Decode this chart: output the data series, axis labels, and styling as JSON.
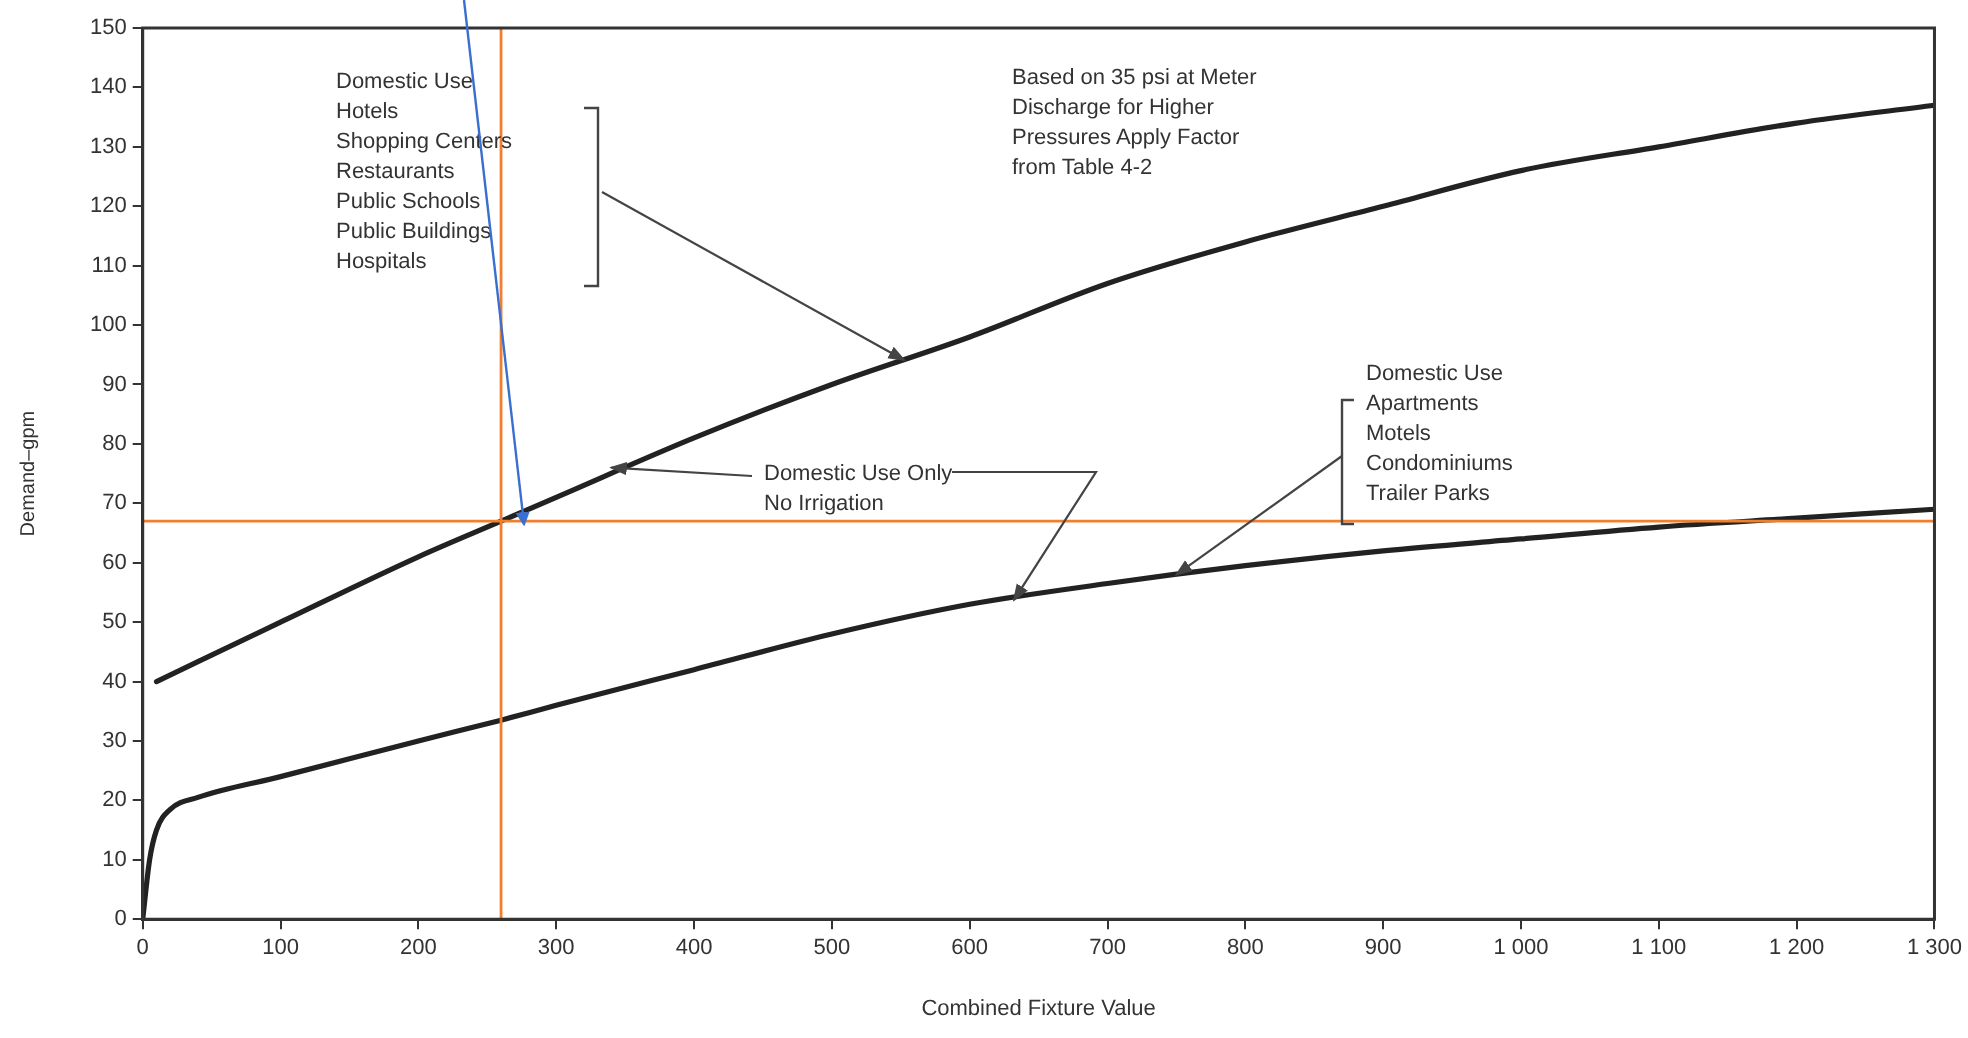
{
  "chart_data": {
    "type": "line",
    "xlabel": "Combined Fixture Value",
    "ylabel": "Demand–gpm",
    "xlim": [
      0,
      1300
    ],
    "ylim": [
      0,
      150
    ],
    "xticks": [
      0,
      100,
      200,
      300,
      400,
      500,
      600,
      700,
      800,
      900,
      {
        "value": 1000,
        "label": "1 000"
      },
      {
        "value": 1100,
        "label": "1 100"
      },
      {
        "value": 1200,
        "label": "1 200"
      },
      {
        "value": 1300,
        "label": "1 300"
      }
    ],
    "yticks": [
      0,
      10,
      20,
      30,
      40,
      50,
      60,
      70,
      80,
      90,
      100,
      110,
      120,
      130,
      140,
      150
    ],
    "marker": "none",
    "series": [
      {
        "color": "#222222",
        "x": [
          10,
          100,
          200,
          260,
          300,
          400,
          500,
          600,
          700,
          800,
          900,
          1000,
          1100,
          1200,
          1300
        ],
        "values": [
          40,
          50,
          61,
          67,
          71,
          81,
          90,
          98,
          107,
          114,
          120,
          126,
          130,
          134,
          137
        ]
      },
      {
        "color": "#222222",
        "x": [
          0,
          5,
          10,
          20,
          40,
          100,
          200,
          260,
          300,
          400,
          500,
          600,
          700,
          800,
          900,
          1000,
          1100,
          1200,
          1300
        ],
        "values": [
          0,
          10,
          15,
          18.5,
          20.5,
          24,
          30,
          33.5,
          36,
          42,
          48,
          53,
          56.5,
          59.5,
          62,
          64,
          66,
          67.5,
          69
        ]
      }
    ],
    "ref_lines": [
      {
        "axis": "x",
        "value": 260,
        "color": "#f08030"
      },
      {
        "axis": "y",
        "value": 67,
        "color": "#f08030"
      }
    ],
    "annotations": [
      "Domestic Use\nHotels\nShopping Centers\nRestaurants\nPublic Schools\nPublic Buildings\nHospitals",
      "Based on 35 psi at Meter\nDischarge for Higher\nPressures Apply Factor\nfrom Table 4-2",
      {
        "text": "Domestic Use Only\nNo Irrigation",
        "x": 340,
        "y": 76
      },
      {
        "text": "Domestic Use\nApartments\nMotels\nCondominiums\nTrailer Parks",
        "x": 750,
        "y": 58
      }
    ]
  }
}
